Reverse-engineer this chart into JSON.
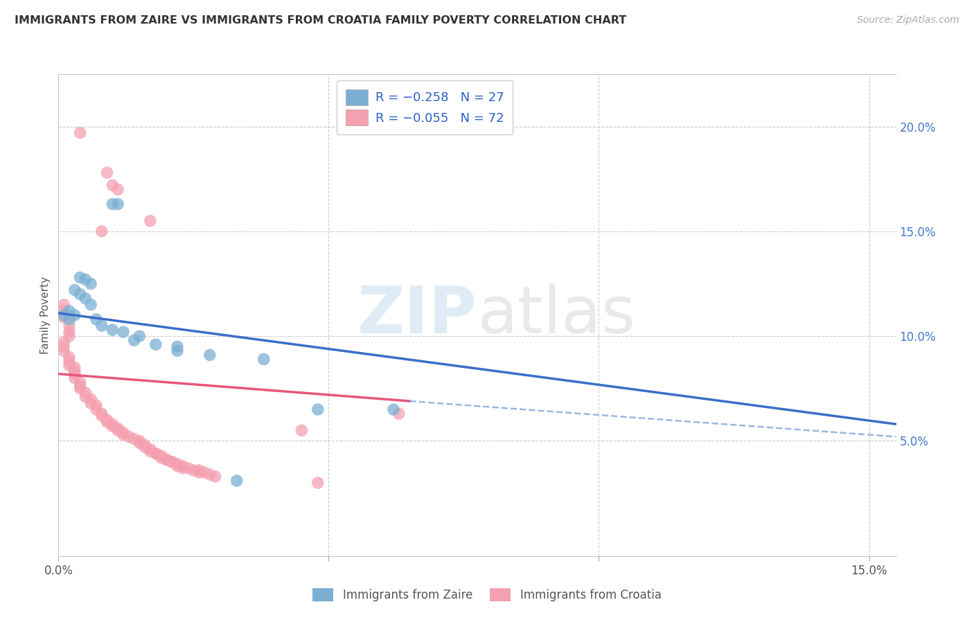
{
  "title": "IMMIGRANTS FROM ZAIRE VS IMMIGRANTS FROM CROATIA FAMILY POVERTY CORRELATION CHART",
  "source": "Source: ZipAtlas.com",
  "ylabel": "Family Poverty",
  "right_yticks": [
    "5.0%",
    "10.0%",
    "15.0%",
    "20.0%"
  ],
  "right_ytick_vals": [
    0.05,
    0.1,
    0.15,
    0.2
  ],
  "xlim": [
    0.0,
    0.155
  ],
  "ylim": [
    -0.005,
    0.225
  ],
  "legend_label1": "Immigrants from Zaire",
  "legend_label2": "Immigrants from Croatia",
  "zaire_color": "#7bafd4",
  "croatia_color": "#f4a0b0",
  "zaire_line_color": "#3a6ec8",
  "croatia_line_color": "#e8567a",
  "dash_line_color": "#88aadd",
  "bg_color": "#ffffff",
  "grid_color": "#cccccc",
  "zaire_points": [
    [
      0.001,
      0.11
    ],
    [
      0.002,
      0.108
    ],
    [
      0.01,
      0.163
    ],
    [
      0.011,
      0.163
    ],
    [
      0.004,
      0.128
    ],
    [
      0.005,
      0.127
    ],
    [
      0.006,
      0.125
    ],
    [
      0.003,
      0.122
    ],
    [
      0.004,
      0.12
    ],
    [
      0.005,
      0.118
    ],
    [
      0.006,
      0.115
    ],
    [
      0.002,
      0.112
    ],
    [
      0.003,
      0.11
    ],
    [
      0.007,
      0.108
    ],
    [
      0.008,
      0.105
    ],
    [
      0.01,
      0.103
    ],
    [
      0.012,
      0.102
    ],
    [
      0.015,
      0.1
    ],
    [
      0.014,
      0.098
    ],
    [
      0.018,
      0.096
    ],
    [
      0.022,
      0.095
    ],
    [
      0.022,
      0.093
    ],
    [
      0.028,
      0.091
    ],
    [
      0.038,
      0.089
    ],
    [
      0.048,
      0.065
    ],
    [
      0.062,
      0.065
    ],
    [
      0.033,
      0.031
    ]
  ],
  "croatia_points": [
    [
      0.004,
      0.197
    ],
    [
      0.009,
      0.178
    ],
    [
      0.01,
      0.172
    ],
    [
      0.011,
      0.17
    ],
    [
      0.017,
      0.155
    ],
    [
      0.008,
      0.15
    ],
    [
      0.001,
      0.115
    ],
    [
      0.001,
      0.112
    ],
    [
      0.001,
      0.109
    ],
    [
      0.002,
      0.105
    ],
    [
      0.002,
      0.102
    ],
    [
      0.002,
      0.1
    ],
    [
      0.001,
      0.097
    ],
    [
      0.001,
      0.095
    ],
    [
      0.001,
      0.093
    ],
    [
      0.002,
      0.09
    ],
    [
      0.002,
      0.088
    ],
    [
      0.002,
      0.086
    ],
    [
      0.003,
      0.085
    ],
    [
      0.003,
      0.083
    ],
    [
      0.003,
      0.082
    ],
    [
      0.003,
      0.08
    ],
    [
      0.004,
      0.078
    ],
    [
      0.004,
      0.076
    ],
    [
      0.004,
      0.075
    ],
    [
      0.005,
      0.073
    ],
    [
      0.005,
      0.071
    ],
    [
      0.006,
      0.07
    ],
    [
      0.006,
      0.068
    ],
    [
      0.007,
      0.067
    ],
    [
      0.007,
      0.065
    ],
    [
      0.008,
      0.063
    ],
    [
      0.008,
      0.062
    ],
    [
      0.009,
      0.06
    ],
    [
      0.009,
      0.059
    ],
    [
      0.01,
      0.058
    ],
    [
      0.01,
      0.057
    ],
    [
      0.011,
      0.056
    ],
    [
      0.011,
      0.055
    ],
    [
      0.012,
      0.054
    ],
    [
      0.012,
      0.053
    ],
    [
      0.013,
      0.052
    ],
    [
      0.014,
      0.051
    ],
    [
      0.015,
      0.05
    ],
    [
      0.015,
      0.049
    ],
    [
      0.016,
      0.048
    ],
    [
      0.016,
      0.047
    ],
    [
      0.017,
      0.046
    ],
    [
      0.017,
      0.045
    ],
    [
      0.018,
      0.044
    ],
    [
      0.018,
      0.044
    ],
    [
      0.019,
      0.043
    ],
    [
      0.019,
      0.042
    ],
    [
      0.02,
      0.041
    ],
    [
      0.02,
      0.041
    ],
    [
      0.021,
      0.04
    ],
    [
      0.021,
      0.04
    ],
    [
      0.022,
      0.039
    ],
    [
      0.022,
      0.038
    ],
    [
      0.023,
      0.038
    ],
    [
      0.023,
      0.037
    ],
    [
      0.024,
      0.037
    ],
    [
      0.025,
      0.036
    ],
    [
      0.026,
      0.036
    ],
    [
      0.026,
      0.035
    ],
    [
      0.027,
      0.035
    ],
    [
      0.028,
      0.034
    ],
    [
      0.029,
      0.033
    ],
    [
      0.048,
      0.03
    ],
    [
      0.063,
      0.063
    ],
    [
      0.045,
      0.055
    ]
  ],
  "zaire_line": [
    [
      0.0,
      0.111
    ],
    [
      0.155,
      0.058
    ]
  ],
  "croatia_line_solid": [
    [
      0.0,
      0.082
    ],
    [
      0.065,
      0.069
    ]
  ],
  "croatia_line_dash": [
    [
      0.065,
      0.069
    ],
    [
      0.155,
      0.052
    ]
  ]
}
